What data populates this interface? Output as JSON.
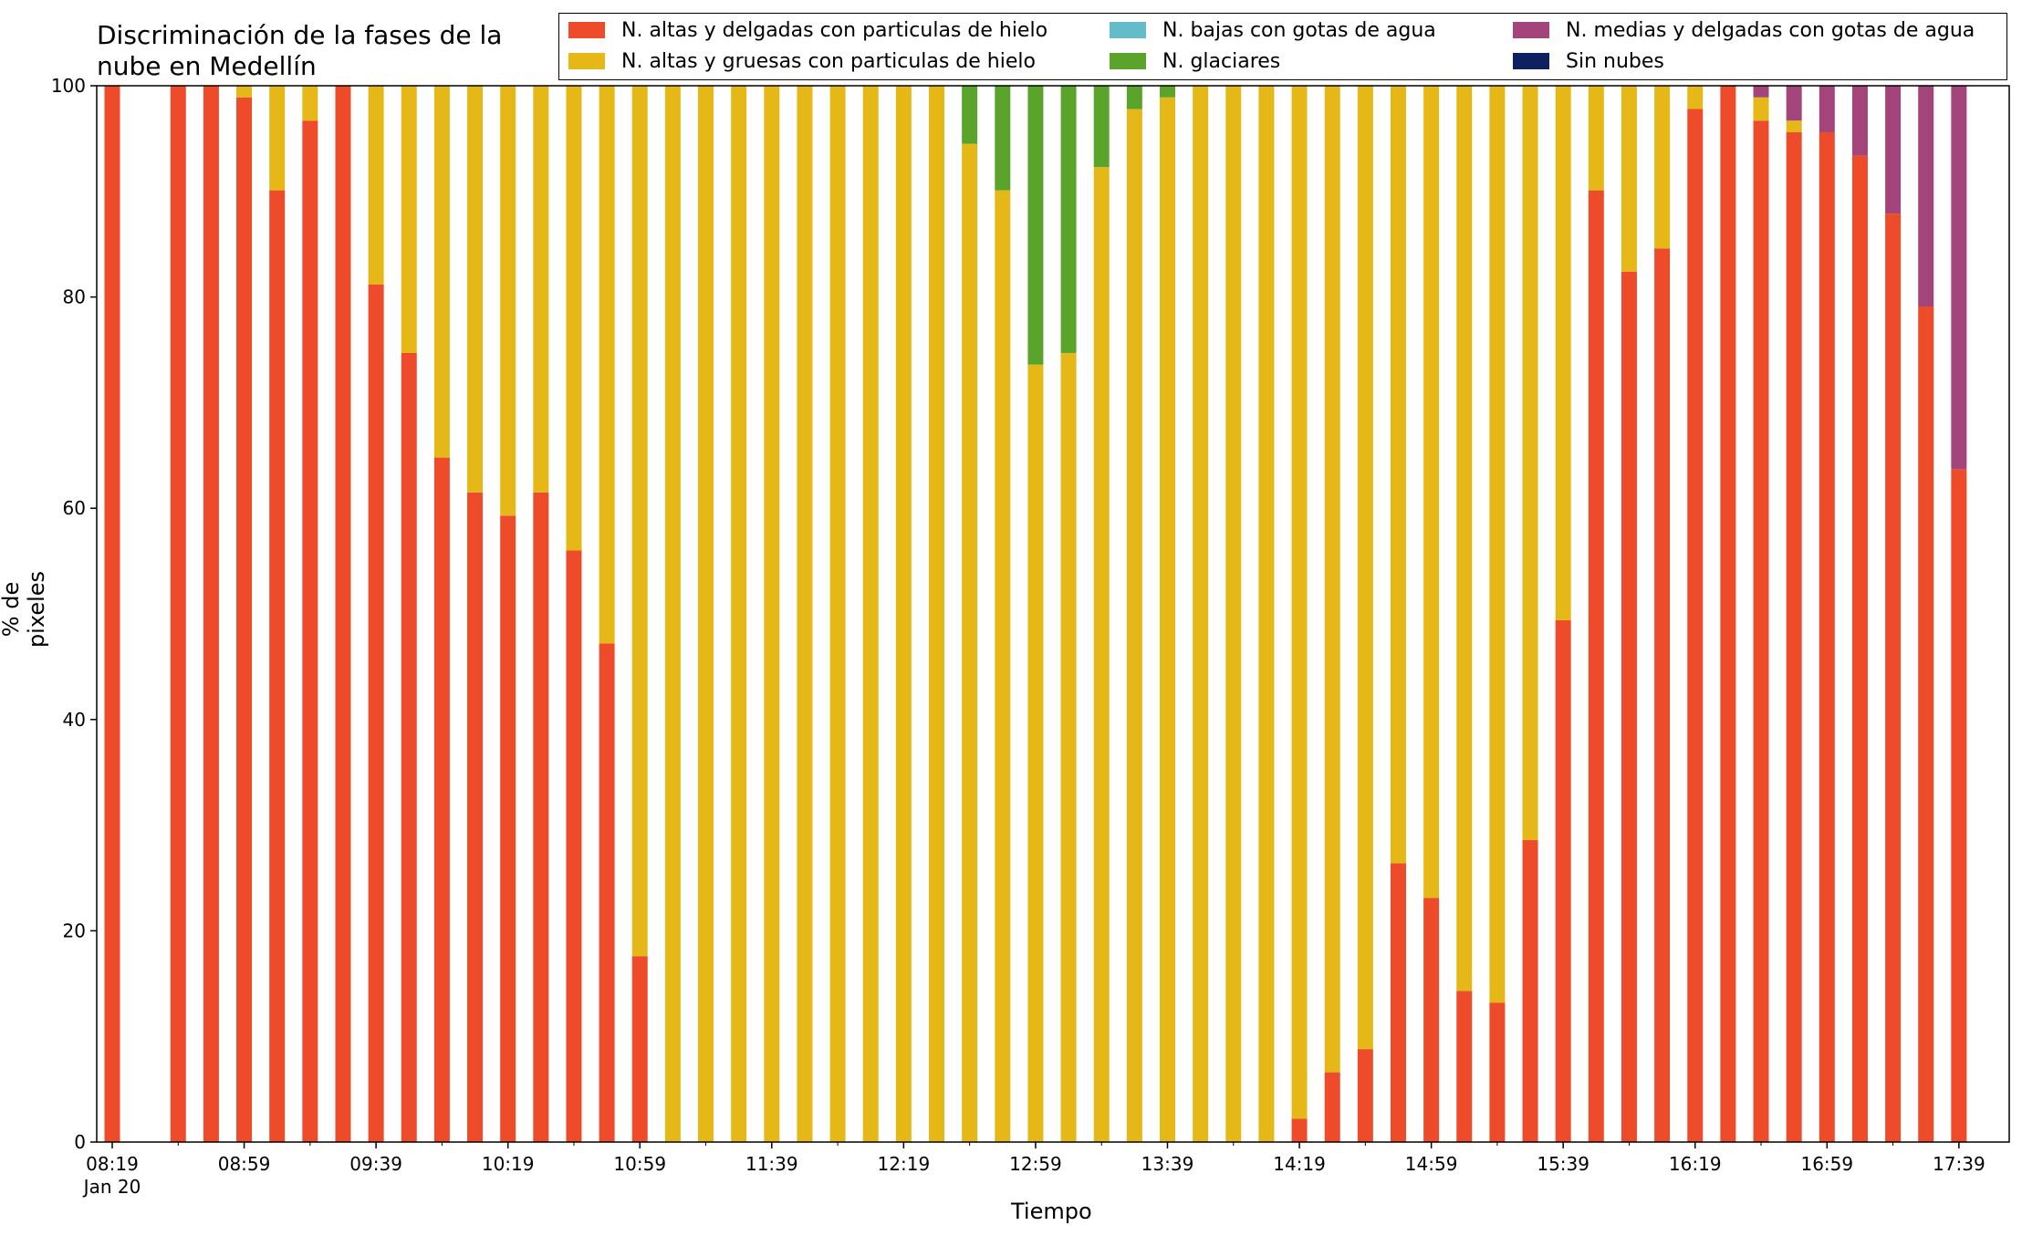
{
  "chart_data": {
    "type": "bar",
    "stacked": true,
    "title": "Discriminación de la fases de la\nnube en Medellín",
    "xlabel": "Tiempo",
    "ylabel": "% de pixeles",
    "ylim": [
      0,
      100
    ],
    "yticks": [
      0,
      20,
      40,
      60,
      80,
      100
    ],
    "x_start": "08:19",
    "x_end": "17:49",
    "xticks": [
      "08:19",
      "08:59",
      "09:39",
      "10:19",
      "10:59",
      "11:39",
      "12:19",
      "12:59",
      "13:39",
      "14:19",
      "14:59",
      "15:39",
      "16:19",
      "16:59",
      "17:39"
    ],
    "xtick_sublabel": "Jan 20",
    "legend_position": "top-right",
    "grid": false,
    "categories": [
      "08:19",
      "08:29",
      "08:39",
      "08:49",
      "08:59",
      "09:09",
      "09:19",
      "09:29",
      "09:39",
      "09:49",
      "09:59",
      "10:09",
      "10:19",
      "10:29",
      "10:39",
      "10:49",
      "10:59",
      "11:09",
      "11:19",
      "11:29",
      "11:39",
      "11:49",
      "11:59",
      "12:09",
      "12:19",
      "12:29",
      "12:39",
      "12:49",
      "12:59",
      "13:09",
      "13:19",
      "13:29",
      "13:39",
      "13:49",
      "13:59",
      "14:09",
      "14:19",
      "14:29",
      "14:39",
      "14:49",
      "14:59",
      "15:09",
      "15:19",
      "15:29",
      "15:39",
      "15:49",
      "15:59",
      "16:09",
      "16:19",
      "16:29",
      "16:39",
      "16:49",
      "16:59",
      "17:09",
      "17:19",
      "17:29",
      "17:39",
      "17:49"
    ],
    "series": [
      {
        "name": "N. altas y delgadas con particulas de hielo",
        "color": "#ee4b2b",
        "values": [
          100,
          0,
          100,
          100,
          98.9,
          90.1,
          96.7,
          100,
          81.2,
          74.7,
          64.8,
          61.5,
          59.3,
          61.5,
          56,
          47.2,
          17.6,
          0,
          0,
          0,
          0,
          0,
          0,
          0,
          0,
          0,
          0,
          0,
          0,
          0,
          0,
          0,
          0,
          0,
          0,
          0,
          2.2,
          6.6,
          8.8,
          26.4,
          23.1,
          14.3,
          13.2,
          28.6,
          49.4,
          90.1,
          82.4,
          84.6,
          97.8,
          100,
          96.7,
          95.6,
          95.6,
          93.4,
          87.9,
          79.1,
          63.7,
          null
        ]
      },
      {
        "name": "N. altas y gruesas con particulas de hielo",
        "color": "#e5b817",
        "values": [
          0,
          0,
          0,
          0,
          1.1,
          9.9,
          3.3,
          0,
          18.8,
          25.3,
          35.2,
          38.5,
          40.7,
          38.5,
          44,
          52.8,
          82.4,
          100,
          100,
          100,
          100,
          100,
          100,
          100,
          100,
          100,
          94.5,
          90.1,
          73.6,
          74.7,
          92.3,
          97.8,
          98.9,
          100,
          100,
          100,
          97.8,
          93.4,
          91.2,
          73.6,
          76.9,
          85.7,
          86.8,
          71.4,
          50.6,
          9.9,
          17.6,
          15.4,
          2.2,
          0,
          2.2,
          1.1,
          0,
          0,
          0,
          0,
          0,
          null
        ]
      },
      {
        "name": "N. bajas con gotas de agua",
        "color": "#64bccb",
        "values": [
          0,
          0,
          0,
          0,
          0,
          0,
          0,
          0,
          0,
          0,
          0,
          0,
          0,
          0,
          0,
          0,
          0,
          0,
          0,
          0,
          0,
          0,
          0,
          0,
          0,
          0,
          0,
          0,
          0,
          0,
          0,
          0,
          0,
          0,
          0,
          0,
          0,
          0,
          0,
          0,
          0,
          0,
          0,
          0,
          0,
          0,
          0,
          0,
          0,
          0,
          0,
          0,
          0,
          0,
          0,
          0,
          0,
          null
        ]
      },
      {
        "name": "N. glaciares",
        "color": "#5aa42b",
        "values": [
          0,
          0,
          0,
          0,
          0,
          0,
          0,
          0,
          0,
          0,
          0,
          0,
          0,
          0,
          0,
          0,
          0,
          0,
          0,
          0,
          0,
          0,
          0,
          0,
          0,
          0,
          5.5,
          9.9,
          26.4,
          25.3,
          7.7,
          2.2,
          1.1,
          0,
          0,
          0,
          0,
          0,
          0,
          0,
          0,
          0,
          0,
          0,
          0,
          0,
          0,
          0,
          0,
          0,
          0,
          0,
          0,
          0,
          0,
          0,
          0,
          null
        ]
      },
      {
        "name": "N. medias y delgadas con gotas de agua",
        "color": "#a3447b",
        "values": [
          0,
          0,
          0,
          0,
          0,
          0,
          0,
          0,
          0,
          0,
          0,
          0,
          0,
          0,
          0,
          0,
          0,
          0,
          0,
          0,
          0,
          0,
          0,
          0,
          0,
          0,
          0,
          0,
          0,
          0,
          0,
          0,
          0,
          0,
          0,
          0,
          0,
          0,
          0,
          0,
          0,
          0,
          0,
          0,
          0,
          0,
          0,
          0,
          0,
          0,
          1.1,
          3.3,
          4.4,
          6.6,
          12.1,
          20.9,
          36.3,
          null
        ]
      },
      {
        "name": "Sin nubes",
        "color": "#0d2060",
        "values": [
          0,
          0,
          0,
          0,
          0,
          0,
          0,
          0,
          0,
          0,
          0,
          0,
          0,
          0,
          0,
          0,
          0,
          0,
          0,
          0,
          0,
          0,
          0,
          0,
          0,
          0,
          0,
          0,
          0,
          0,
          0,
          0,
          0,
          0,
          0,
          0,
          0,
          0,
          0,
          0,
          0,
          0,
          0,
          0,
          0,
          0,
          0,
          0,
          0,
          0,
          0,
          0,
          0,
          0,
          0,
          0,
          0,
          null
        ]
      }
    ]
  }
}
